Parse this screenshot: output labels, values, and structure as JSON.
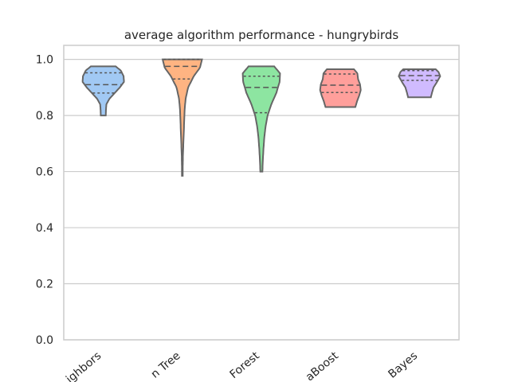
{
  "chart_data": {
    "type": "violin",
    "title": "average algorithm performance - hungrybirds",
    "xlabel": "",
    "ylabel": "",
    "ylim": [
      0.0,
      1.05
    ],
    "yticks": [
      0.0,
      0.2,
      0.4,
      0.6,
      0.8,
      1.0
    ],
    "ytick_labels": [
      "0.0",
      "0.2",
      "0.4",
      "0.6",
      "0.8",
      "1.0"
    ],
    "grid": "horizontal",
    "categories": [
      "Nearest Neighbors",
      "Decision Tree",
      "Random Forest",
      "AdaBoost",
      "Naive Bayes"
    ],
    "category_labels_visible": [
      "ighbors",
      "n Tree",
      "Forest",
      "aBoost",
      "Bayes"
    ],
    "colors": [
      "#a1c9f4",
      "#ffb482",
      "#8de5a1",
      "#ff9f9b",
      "#d0bbff"
    ],
    "series": [
      {
        "category": "Nearest Neighbors",
        "min": 0.8,
        "max": 0.975,
        "q1": 0.88,
        "median": 0.91,
        "q3": 0.952,
        "profile": [
          [
            0.8,
            0.12
          ],
          [
            0.82,
            0.13
          ],
          [
            0.84,
            0.15
          ],
          [
            0.86,
            0.3
          ],
          [
            0.88,
            0.55
          ],
          [
            0.9,
            0.8
          ],
          [
            0.92,
            1.0
          ],
          [
            0.94,
            0.98
          ],
          [
            0.96,
            0.85
          ],
          [
            0.975,
            0.6
          ]
        ]
      },
      {
        "category": "Decision Tree",
        "min": 0.585,
        "max": 1.0,
        "q1": 0.93,
        "median": 0.975,
        "q3": 1.0,
        "profile": [
          [
            0.585,
            0.02
          ],
          [
            0.62,
            0.02
          ],
          [
            0.66,
            0.03
          ],
          [
            0.7,
            0.05
          ],
          [
            0.74,
            0.07
          ],
          [
            0.78,
            0.09
          ],
          [
            0.82,
            0.11
          ],
          [
            0.86,
            0.16
          ],
          [
            0.9,
            0.28
          ],
          [
            0.94,
            0.55
          ],
          [
            0.97,
            0.85
          ],
          [
            1.0,
            0.95
          ]
        ]
      },
      {
        "category": "Random Forest",
        "min": 0.6,
        "max": 0.975,
        "q1": 0.81,
        "median": 0.9,
        "q3": 0.94,
        "profile": [
          [
            0.6,
            0.05
          ],
          [
            0.64,
            0.07
          ],
          [
            0.68,
            0.1
          ],
          [
            0.72,
            0.14
          ],
          [
            0.76,
            0.2
          ],
          [
            0.8,
            0.3
          ],
          [
            0.84,
            0.48
          ],
          [
            0.88,
            0.72
          ],
          [
            0.92,
            0.88
          ],
          [
            0.95,
            0.9
          ],
          [
            0.975,
            0.62
          ]
        ]
      },
      {
        "category": "AdaBoost",
        "min": 0.83,
        "max": 0.965,
        "q1": 0.882,
        "median": 0.908,
        "q3": 0.948,
        "profile": [
          [
            0.83,
            0.72
          ],
          [
            0.85,
            0.8
          ],
          [
            0.87,
            0.9
          ],
          [
            0.89,
            0.98
          ],
          [
            0.91,
            0.95
          ],
          [
            0.93,
            0.85
          ],
          [
            0.95,
            0.82
          ],
          [
            0.965,
            0.65
          ]
        ]
      },
      {
        "category": "Naive Bayes",
        "min": 0.865,
        "max": 0.965,
        "q1": 0.925,
        "median": 0.942,
        "q3": 0.96,
        "profile": [
          [
            0.865,
            0.55
          ],
          [
            0.88,
            0.6
          ],
          [
            0.9,
            0.68
          ],
          [
            0.92,
            0.85
          ],
          [
            0.94,
            1.0
          ],
          [
            0.955,
            0.92
          ],
          [
            0.965,
            0.78
          ]
        ]
      }
    ]
  }
}
